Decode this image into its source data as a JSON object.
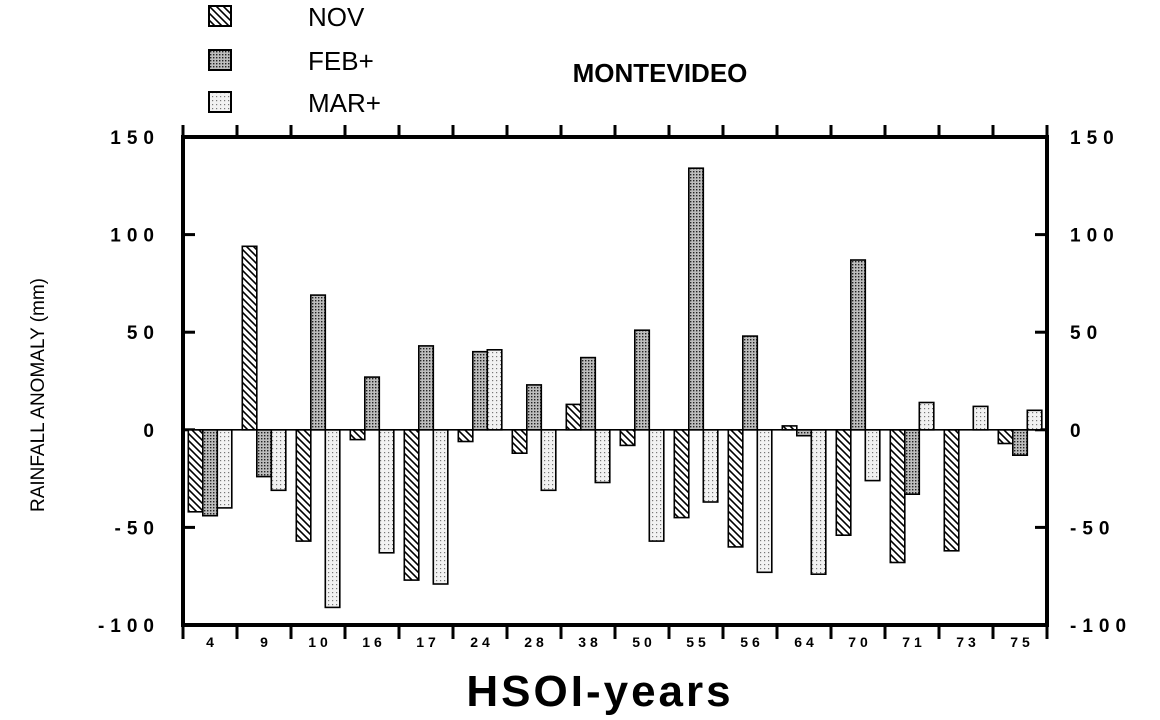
{
  "chart_data": {
    "type": "bar",
    "title": "MONTEVIDEO",
    "xlabel": "HSOI-years",
    "ylabel": "RAINFALL  ANOMALY  (mm)",
    "ylim": [
      -100,
      150
    ],
    "yticks": [
      -100,
      -50,
      0,
      50,
      100,
      150
    ],
    "ytick_labels": [
      "-100",
      "-50",
      "0",
      "50",
      "100",
      "150"
    ],
    "legend_placement": "top-left",
    "grid": false,
    "categories": [
      "4",
      "9",
      "10",
      "16",
      "17",
      "24",
      "28",
      "38",
      "50",
      "55",
      "56",
      "64",
      "70",
      "71",
      "73",
      "75"
    ],
    "category_labels": [
      "4",
      "9",
      "1 0",
      "1 6",
      "1 7",
      "2 4",
      "2 8",
      "3 8",
      "5 0",
      "5 5",
      "5 6",
      "6 4",
      "7 0",
      "7 1",
      "7 3",
      "7 5"
    ],
    "series": [
      {
        "name": "NOV",
        "pattern": "hatch",
        "color": "#000000",
        "values": [
          -42,
          94,
          -57,
          -5,
          -77,
          -6,
          -12,
          13,
          -8,
          -45,
          -60,
          2,
          -54,
          -68,
          -62,
          -7
        ]
      },
      {
        "name": "FEB+",
        "pattern": "dense-dots",
        "color": "#777777",
        "values": [
          -44,
          -24,
          69,
          27,
          43,
          40,
          23,
          37,
          51,
          134,
          48,
          -3,
          87,
          -33,
          0,
          -13
        ]
      },
      {
        "name": "MAR+",
        "pattern": "light-dots",
        "color": "#d0d0d0",
        "values": [
          -40,
          -31,
          -91,
          -63,
          -79,
          41,
          -31,
          -27,
          -57,
          -37,
          -73,
          -74,
          -26,
          14,
          12,
          10
        ]
      }
    ]
  }
}
